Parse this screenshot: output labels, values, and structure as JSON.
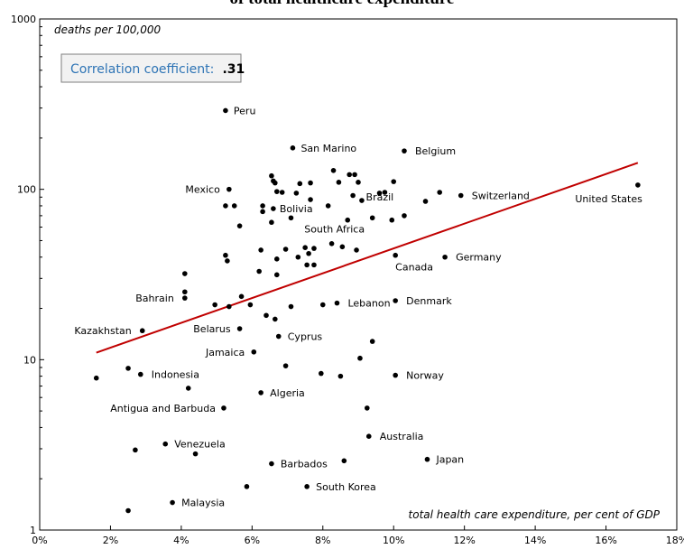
{
  "chart_data": {
    "type": "scatter",
    "title": "of total healthcare expenditure",
    "xlabel": "total health care expenditure, per cent of GDP",
    "ylabel": "deaths per 100,000",
    "xlim": [
      0,
      18
    ],
    "ylim": [
      1,
      1000
    ],
    "yscale": "log",
    "grid": false,
    "x_ticks": [
      "0%",
      "2%",
      "4%",
      "6%",
      "8%",
      "10%",
      "12%",
      "14%",
      "16%",
      "18%"
    ],
    "y_ticks": [
      "1",
      "10",
      "100",
      "1000"
    ],
    "correlation": {
      "label": "Correlation coefficient:",
      "value": ".31"
    },
    "trendline": {
      "color": "#c00000",
      "from": [
        1.6,
        11
      ],
      "to": [
        16.9,
        143
      ]
    },
    "labeled_points": [
      {
        "name": "Peru",
        "x": 5.25,
        "y": 290
      },
      {
        "name": "San Marino",
        "x": 7.15,
        "y": 175
      },
      {
        "name": "Belgium",
        "x": 10.3,
        "y": 168
      },
      {
        "name": "Mexico",
        "x": 5.35,
        "y": 100
      },
      {
        "name": "Brazil",
        "x": 9.6,
        "y": 95
      },
      {
        "name": "Switzerland",
        "x": 11.9,
        "y": 92
      },
      {
        "name": "United States",
        "x": 16.9,
        "y": 106
      },
      {
        "name": "Bolivia",
        "x": 6.6,
        "y": 77
      },
      {
        "name": "South Africa",
        "x": 8.7,
        "y": 66
      },
      {
        "name": "Germany",
        "x": 11.45,
        "y": 40
      },
      {
        "name": "Canada",
        "x": 10.05,
        "y": 41
      },
      {
        "name": "Bahrain",
        "x": 4.1,
        "y": 23
      },
      {
        "name": "Lebanon",
        "x": 8.4,
        "y": 21.5
      },
      {
        "name": "Denmark",
        "x": 10.05,
        "y": 22.2
      },
      {
        "name": "Kazakhstan",
        "x": 2.9,
        "y": 14.8
      },
      {
        "name": "Belarus",
        "x": 5.65,
        "y": 15.2
      },
      {
        "name": "Cyprus",
        "x": 6.75,
        "y": 13.7
      },
      {
        "name": "Jamaica",
        "x": 6.05,
        "y": 11.1
      },
      {
        "name": "Indonesia",
        "x": 2.85,
        "y": 8.2
      },
      {
        "name": "Norway",
        "x": 10.05,
        "y": 8.1
      },
      {
        "name": "Algeria",
        "x": 6.25,
        "y": 6.4
      },
      {
        "name": "Antigua and Barbuda",
        "x": 5.2,
        "y": 5.2
      },
      {
        "name": "Australia",
        "x": 9.3,
        "y": 3.55
      },
      {
        "name": "Venezuela",
        "x": 3.55,
        "y": 3.2
      },
      {
        "name": "Barbados",
        "x": 6.55,
        "y": 2.45
      },
      {
        "name": "Japan",
        "x": 10.95,
        "y": 2.6
      },
      {
        "name": "South Korea",
        "x": 7.55,
        "y": 1.8
      },
      {
        "name": "Malaysia",
        "x": 3.75,
        "y": 1.45
      }
    ],
    "unlabeled_points": [
      [
        1.6,
        7.8
      ],
      [
        2.5,
        1.3
      ],
      [
        2.5,
        8.9
      ],
      [
        2.7,
        2.95
      ],
      [
        4.1,
        32
      ],
      [
        4.1,
        25
      ],
      [
        4.2,
        6.8
      ],
      [
        4.4,
        2.8
      ],
      [
        4.95,
        21
      ],
      [
        5.25,
        80
      ],
      [
        5.25,
        41
      ],
      [
        5.3,
        38
      ],
      [
        5.35,
        20.5
      ],
      [
        5.5,
        80
      ],
      [
        5.65,
        61
      ],
      [
        5.7,
        23.5
      ],
      [
        5.85,
        1.8
      ],
      [
        5.95,
        21
      ],
      [
        6.2,
        33
      ],
      [
        6.25,
        44
      ],
      [
        6.3,
        80
      ],
      [
        6.3,
        74
      ],
      [
        6.4,
        18.2
      ],
      [
        6.55,
        120
      ],
      [
        6.55,
        64
      ],
      [
        6.6,
        112
      ],
      [
        6.65,
        109
      ],
      [
        6.65,
        17.3
      ],
      [
        6.7,
        97
      ],
      [
        6.7,
        31.5
      ],
      [
        6.7,
        39
      ],
      [
        6.85,
        96
      ],
      [
        6.95,
        44.5
      ],
      [
        6.95,
        9.2
      ],
      [
        7.1,
        68
      ],
      [
        7.1,
        20.5
      ],
      [
        7.25,
        95
      ],
      [
        7.3,
        40
      ],
      [
        7.35,
        108
      ],
      [
        7.5,
        45.5
      ],
      [
        7.55,
        36
      ],
      [
        7.6,
        42
      ],
      [
        7.65,
        109
      ],
      [
        7.65,
        87
      ],
      [
        7.75,
        45
      ],
      [
        7.75,
        36
      ],
      [
        7.95,
        8.3
      ],
      [
        8.0,
        21
      ],
      [
        8.15,
        80
      ],
      [
        8.25,
        48
      ],
      [
        8.3,
        129
      ],
      [
        8.45,
        110
      ],
      [
        8.5,
        8.0
      ],
      [
        8.55,
        46
      ],
      [
        8.6,
        2.55
      ],
      [
        8.75,
        122
      ],
      [
        8.85,
        92
      ],
      [
        8.9,
        122
      ],
      [
        8.95,
        44
      ],
      [
        9.0,
        110
      ],
      [
        9.05,
        10.2
      ],
      [
        9.1,
        86
      ],
      [
        9.25,
        5.2
      ],
      [
        9.4,
        68
      ],
      [
        9.4,
        12.8
      ],
      [
        9.75,
        96
      ],
      [
        9.95,
        66
      ],
      [
        10.0,
        111
      ],
      [
        10.3,
        70
      ],
      [
        10.9,
        85
      ],
      [
        11.3,
        96
      ]
    ]
  }
}
